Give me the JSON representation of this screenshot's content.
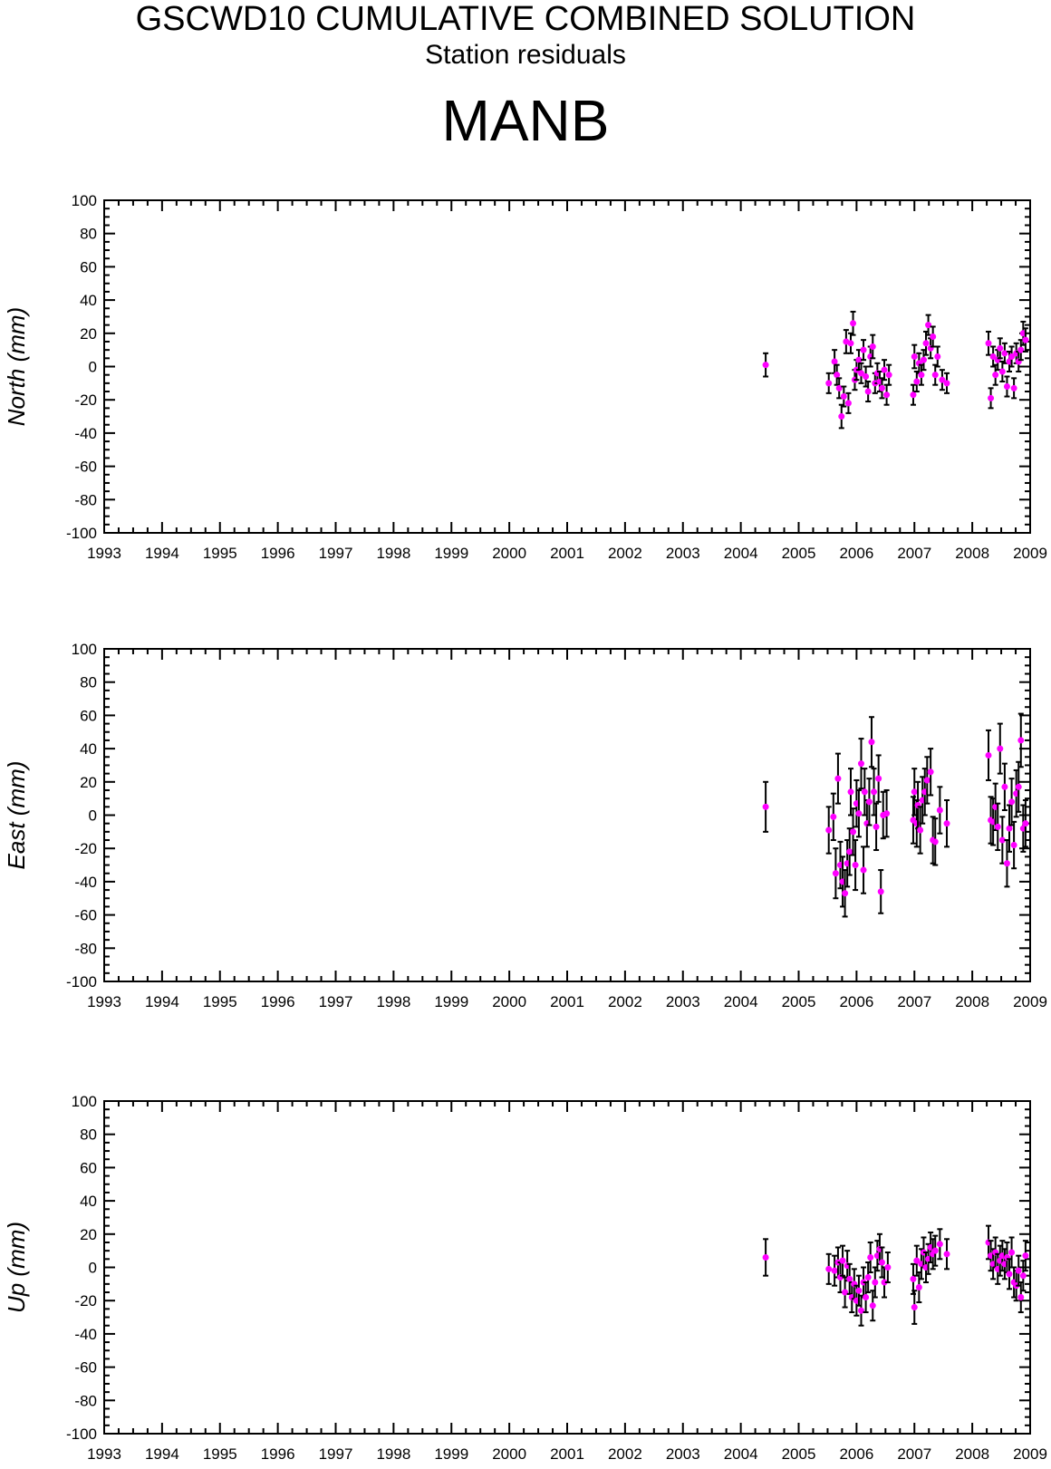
{
  "header": {
    "title": "GSCWD10 CUMULATIVE COMBINED SOLUTION",
    "subtitle": "Station residuals",
    "station": "MANB"
  },
  "colors": {
    "point": "#ff00ff",
    "errorbar": "#000000",
    "axis": "#000000"
  },
  "chart_data": [
    {
      "type": "scatter",
      "ylabel": "North (mm)",
      "xlim": [
        1993,
        2009
      ],
      "ylim": [
        -100,
        100
      ],
      "xticks": [
        "1993",
        "1994",
        "1995",
        "1996",
        "1997",
        "1998",
        "1999",
        "2000",
        "2001",
        "2002",
        "2003",
        "2004",
        "2005",
        "2006",
        "2007",
        "2008",
        "2009"
      ],
      "yticks": [
        "100",
        "80",
        "60",
        "40",
        "20",
        "0",
        "-20",
        "-40",
        "-60",
        "-80",
        "-100"
      ],
      "points": [
        [
          2004.43,
          1,
          7
        ],
        [
          2005.52,
          -10,
          6
        ],
        [
          2005.62,
          3,
          7
        ],
        [
          2005.66,
          -5,
          6
        ],
        [
          2005.7,
          -13,
          6
        ],
        [
          2005.74,
          -30,
          7
        ],
        [
          2005.78,
          -18,
          6
        ],
        [
          2005.82,
          15,
          7
        ],
        [
          2005.86,
          -22,
          6
        ],
        [
          2005.9,
          14,
          6
        ],
        [
          2005.94,
          26,
          7
        ],
        [
          2005.97,
          -8,
          6
        ],
        [
          2006.0,
          -2,
          6
        ],
        [
          2006.04,
          4,
          6
        ],
        [
          2006.08,
          -4,
          6
        ],
        [
          2006.12,
          10,
          6
        ],
        [
          2006.16,
          -6,
          6
        ],
        [
          2006.2,
          -15,
          6
        ],
        [
          2006.24,
          6,
          6
        ],
        [
          2006.28,
          12,
          7
        ],
        [
          2006.32,
          -10,
          6
        ],
        [
          2006.36,
          -4,
          6
        ],
        [
          2006.4,
          -9,
          6
        ],
        [
          2006.44,
          -13,
          6
        ],
        [
          2006.48,
          -2,
          6
        ],
        [
          2006.52,
          -17,
          6
        ],
        [
          2006.56,
          -5,
          6
        ],
        [
          2006.98,
          -17,
          6
        ],
        [
          2007.0,
          6,
          7
        ],
        [
          2007.04,
          -9,
          6
        ],
        [
          2007.08,
          2,
          6
        ],
        [
          2007.12,
          -5,
          6
        ],
        [
          2007.16,
          4,
          6
        ],
        [
          2007.2,
          14,
          7
        ],
        [
          2007.24,
          25,
          6
        ],
        [
          2007.28,
          11,
          6
        ],
        [
          2007.32,
          18,
          6
        ],
        [
          2007.36,
          -5,
          6
        ],
        [
          2007.4,
          6,
          6
        ],
        [
          2007.48,
          -8,
          6
        ],
        [
          2007.56,
          -10,
          6
        ],
        [
          2008.28,
          14,
          7
        ],
        [
          2008.32,
          -19,
          6
        ],
        [
          2008.36,
          6,
          6
        ],
        [
          2008.4,
          -5,
          6
        ],
        [
          2008.44,
          4,
          6
        ],
        [
          2008.48,
          11,
          6
        ],
        [
          2008.52,
          -3,
          6
        ],
        [
          2008.56,
          8,
          6
        ],
        [
          2008.6,
          -12,
          6
        ],
        [
          2008.64,
          3,
          6
        ],
        [
          2008.68,
          6,
          6
        ],
        [
          2008.72,
          -13,
          6
        ],
        [
          2008.76,
          8,
          6
        ],
        [
          2008.8,
          3,
          6
        ],
        [
          2008.84,
          10,
          6
        ],
        [
          2008.88,
          20,
          7
        ],
        [
          2008.92,
          16,
          7
        ]
      ]
    },
    {
      "type": "scatter",
      "ylabel": "East (mm)",
      "xlim": [
        1993,
        2009
      ],
      "ylim": [
        -100,
        100
      ],
      "xticks": [
        "1993",
        "1994",
        "1995",
        "1996",
        "1997",
        "1998",
        "1999",
        "2000",
        "2001",
        "2002",
        "2003",
        "2004",
        "2005",
        "2006",
        "2007",
        "2008",
        "2009"
      ],
      "yticks": [
        "100",
        "80",
        "60",
        "40",
        "20",
        "0",
        "-20",
        "-40",
        "-60",
        "-80",
        "-100"
      ],
      "points": [
        [
          2004.43,
          5,
          15
        ],
        [
          2005.52,
          -9,
          14
        ],
        [
          2005.6,
          -1,
          14
        ],
        [
          2005.64,
          -35,
          15
        ],
        [
          2005.68,
          22,
          15
        ],
        [
          2005.72,
          -30,
          14
        ],
        [
          2005.76,
          -40,
          15
        ],
        [
          2005.8,
          -47,
          14
        ],
        [
          2005.84,
          -29,
          14
        ],
        [
          2005.88,
          -22,
          14
        ],
        [
          2005.9,
          14,
          14
        ],
        [
          2005.94,
          -10,
          14
        ],
        [
          2005.98,
          -30,
          15
        ],
        [
          2006.0,
          7,
          14
        ],
        [
          2006.04,
          1,
          14
        ],
        [
          2006.08,
          31,
          15
        ],
        [
          2006.12,
          -33,
          14
        ],
        [
          2006.14,
          14,
          14
        ],
        [
          2006.18,
          -5,
          14
        ],
        [
          2006.22,
          8,
          14
        ],
        [
          2006.26,
          44,
          15
        ],
        [
          2006.3,
          14,
          14
        ],
        [
          2006.34,
          -7,
          14
        ],
        [
          2006.38,
          22,
          14
        ],
        [
          2006.42,
          -46,
          13
        ],
        [
          2006.46,
          0,
          14
        ],
        [
          2006.52,
          1,
          14
        ],
        [
          2006.98,
          -3,
          14
        ],
        [
          2007.0,
          14,
          14
        ],
        [
          2007.04,
          -5,
          14
        ],
        [
          2007.06,
          6,
          14
        ],
        [
          2007.1,
          -9,
          14
        ],
        [
          2007.14,
          9,
          14
        ],
        [
          2007.18,
          14,
          14
        ],
        [
          2007.22,
          21,
          14
        ],
        [
          2007.28,
          26,
          14
        ],
        [
          2007.32,
          -15,
          14
        ],
        [
          2007.36,
          -16,
          14
        ],
        [
          2007.44,
          3,
          14
        ],
        [
          2007.56,
          -5,
          14
        ],
        [
          2008.28,
          36,
          15
        ],
        [
          2008.32,
          -3,
          14
        ],
        [
          2008.36,
          -4,
          14
        ],
        [
          2008.4,
          5,
          14
        ],
        [
          2008.44,
          -7,
          14
        ],
        [
          2008.48,
          40,
          15
        ],
        [
          2008.52,
          -15,
          14
        ],
        [
          2008.56,
          17,
          14
        ],
        [
          2008.6,
          -29,
          14
        ],
        [
          2008.64,
          -8,
          14
        ],
        [
          2008.68,
          8,
          14
        ],
        [
          2008.72,
          -18,
          14
        ],
        [
          2008.76,
          13,
          14
        ],
        [
          2008.8,
          17,
          15
        ],
        [
          2008.84,
          45,
          16
        ],
        [
          2008.88,
          -8,
          14
        ],
        [
          2008.92,
          -5,
          14
        ]
      ]
    },
    {
      "type": "scatter",
      "ylabel": "Up (mm)",
      "xlim": [
        1993,
        2009
      ],
      "ylim": [
        -100,
        100
      ],
      "xticks": [
        "1993",
        "1994",
        "1995",
        "1996",
        "1997",
        "1998",
        "1999",
        "2000",
        "2001",
        "2002",
        "2003",
        "2004",
        "2005",
        "2006",
        "2007",
        "2008",
        "2009"
      ],
      "yticks": [
        "100",
        "80",
        "60",
        "40",
        "20",
        "0",
        "-20",
        "-40",
        "-60",
        "-80",
        "-100"
      ],
      "points": [
        [
          2004.43,
          6,
          11
        ],
        [
          2005.52,
          -1,
          9
        ],
        [
          2005.62,
          -2,
          9
        ],
        [
          2005.68,
          3,
          9
        ],
        [
          2005.72,
          -6,
          9
        ],
        [
          2005.76,
          4,
          9
        ],
        [
          2005.8,
          -15,
          9
        ],
        [
          2005.84,
          1,
          9
        ],
        [
          2005.88,
          -7,
          9
        ],
        [
          2005.92,
          -18,
          9
        ],
        [
          2005.96,
          -10,
          9
        ],
        [
          2006.0,
          -20,
          9
        ],
        [
          2006.04,
          -14,
          9
        ],
        [
          2006.08,
          -26,
          9
        ],
        [
          2006.12,
          -9,
          9
        ],
        [
          2006.16,
          -18,
          9
        ],
        [
          2006.2,
          -6,
          9
        ],
        [
          2006.24,
          6,
          9
        ],
        [
          2006.28,
          -23,
          9
        ],
        [
          2006.32,
          -9,
          9
        ],
        [
          2006.36,
          7,
          9
        ],
        [
          2006.4,
          11,
          9
        ],
        [
          2006.44,
          3,
          9
        ],
        [
          2006.48,
          -9,
          9
        ],
        [
          2006.54,
          0,
          9
        ],
        [
          2006.98,
          -7,
          9
        ],
        [
          2007.0,
          -24,
          10
        ],
        [
          2007.04,
          4,
          9
        ],
        [
          2007.08,
          -12,
          9
        ],
        [
          2007.12,
          2,
          9
        ],
        [
          2007.16,
          9,
          9
        ],
        [
          2007.2,
          0,
          9
        ],
        [
          2007.24,
          5,
          9
        ],
        [
          2007.28,
          12,
          9
        ],
        [
          2007.32,
          8,
          9
        ],
        [
          2007.36,
          10,
          9
        ],
        [
          2007.44,
          14,
          9
        ],
        [
          2007.56,
          8,
          9
        ],
        [
          2008.28,
          15,
          10
        ],
        [
          2008.32,
          7,
          9
        ],
        [
          2008.36,
          2,
          9
        ],
        [
          2008.4,
          9,
          9
        ],
        [
          2008.44,
          -1,
          9
        ],
        [
          2008.48,
          4,
          9
        ],
        [
          2008.52,
          7,
          9
        ],
        [
          2008.56,
          2,
          9
        ],
        [
          2008.6,
          6,
          9
        ],
        [
          2008.64,
          -4,
          9
        ],
        [
          2008.68,
          9,
          9
        ],
        [
          2008.72,
          -9,
          9
        ],
        [
          2008.76,
          -11,
          9
        ],
        [
          2008.8,
          -2,
          9
        ],
        [
          2008.84,
          -18,
          9
        ],
        [
          2008.88,
          -5,
          9
        ],
        [
          2008.92,
          7,
          9
        ]
      ]
    }
  ]
}
